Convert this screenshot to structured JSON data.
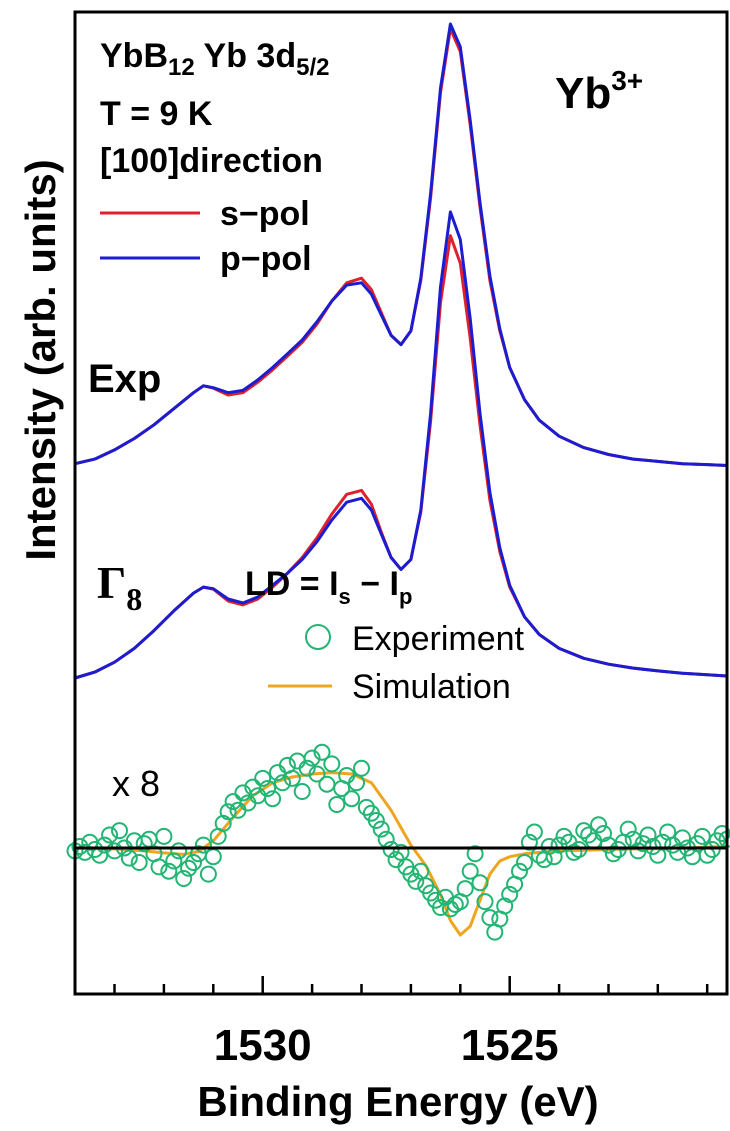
{
  "chart_data": {
    "type": "line",
    "xlabel": "Binding Energy (eV)",
    "ylabel": "Intensity (arb. units)",
    "x_reversed": true,
    "xlim": [
      1533.8,
      1520.6
    ],
    "xticks": [
      1530,
      1525
    ],
    "grid": false,
    "legend_position": "top-left",
    "colors": {
      "s_pol": "#e0202a",
      "p_pol": "#1c1cd0",
      "experiment": "#22b573",
      "simulation": "#f0a51e",
      "axis": "#000000"
    },
    "annotations": {
      "sample_line1_main": "YbB",
      "sample_line1_sub1": "12",
      "sample_line1_mid": " Yb 3d",
      "sample_line1_sub2": "5/2",
      "temperature": "T = 9 K",
      "direction": "[100]direction",
      "ion_base": "Yb",
      "ion_sup": "3+",
      "exp_label": "Exp",
      "calc_label_base": "Γ",
      "calc_label_sub": "8",
      "ld_prefix": "LD = I",
      "ld_sub_s": "s",
      "ld_mid": " − I",
      "ld_sub_p": "p",
      "scale_factor": "x 8"
    },
    "legend_top": [
      "s−pol",
      "p−pol"
    ],
    "legend_bottom": [
      "Experiment",
      "Simulation"
    ],
    "series": [
      {
        "name": "s−pol",
        "group": "Exp",
        "x": [
          1533.8,
          1533.4,
          1533.0,
          1532.6,
          1532.2,
          1531.8,
          1531.4,
          1531.2,
          1531.0,
          1530.7,
          1530.4,
          1530.1,
          1529.8,
          1529.5,
          1529.2,
          1528.9,
          1528.6,
          1528.3,
          1528.0,
          1527.8,
          1527.6,
          1527.4,
          1527.2,
          1527.0,
          1526.8,
          1526.6,
          1526.4,
          1526.2,
          1526.0,
          1525.8,
          1525.6,
          1525.4,
          1525.2,
          1525.0,
          1524.7,
          1524.4,
          1524.0,
          1523.5,
          1523.0,
          1522.5,
          1522.0,
          1521.5,
          1521.0,
          1520.6
        ],
        "values": [
          4.0,
          5.0,
          7.0,
          9.5,
          12.5,
          16.0,
          19.5,
          21.0,
          20.5,
          19.0,
          19.5,
          21.8,
          24.5,
          27.5,
          30.5,
          34.5,
          39.5,
          43.5,
          44.5,
          42.0,
          37.0,
          32.0,
          30.0,
          33.0,
          44.0,
          62.0,
          85.0,
          99.0,
          94.0,
          78.0,
          60.0,
          44.0,
          33.0,
          25.0,
          18.0,
          13.5,
          10.0,
          7.5,
          6.0,
          5.0,
          4.5,
          4.0,
          3.8,
          3.6
        ]
      },
      {
        "name": "p−pol",
        "group": "Exp",
        "x": [
          1533.8,
          1533.4,
          1533.0,
          1532.6,
          1532.2,
          1531.8,
          1531.4,
          1531.2,
          1531.0,
          1530.7,
          1530.4,
          1530.1,
          1529.8,
          1529.5,
          1529.2,
          1528.9,
          1528.6,
          1528.3,
          1528.0,
          1527.8,
          1527.6,
          1527.4,
          1527.2,
          1527.0,
          1526.8,
          1526.6,
          1526.4,
          1526.2,
          1526.0,
          1525.8,
          1525.6,
          1525.4,
          1525.2,
          1525.0,
          1524.7,
          1524.4,
          1524.0,
          1523.5,
          1523.0,
          1522.5,
          1522.0,
          1521.5,
          1521.0,
          1520.6
        ],
        "values": [
          4.0,
          5.0,
          7.0,
          9.5,
          12.5,
          16.0,
          19.5,
          21.0,
          20.6,
          19.5,
          20.0,
          22.3,
          25.0,
          28.0,
          31.0,
          35.0,
          39.5,
          43.0,
          43.5,
          41.0,
          36.5,
          32.0,
          30.0,
          33.0,
          44.5,
          63.0,
          86.0,
          100.0,
          95.0,
          79.0,
          61.0,
          45.0,
          33.5,
          25.0,
          18.0,
          13.5,
          10.0,
          7.5,
          6.0,
          5.0,
          4.5,
          4.0,
          3.8,
          3.6
        ]
      },
      {
        "name": "s−pol",
        "group": "Γ8",
        "x": [
          1533.8,
          1533.4,
          1533.0,
          1532.6,
          1532.2,
          1531.8,
          1531.4,
          1531.2,
          1531.0,
          1530.7,
          1530.4,
          1530.1,
          1529.8,
          1529.5,
          1529.2,
          1528.9,
          1528.6,
          1528.3,
          1528.0,
          1527.8,
          1527.6,
          1527.4,
          1527.2,
          1527.0,
          1526.8,
          1526.6,
          1526.4,
          1526.2,
          1526.0,
          1525.8,
          1525.6,
          1525.4,
          1525.2,
          1525.0,
          1524.7,
          1524.4,
          1524.0,
          1523.5,
          1523.0,
          1522.5,
          1522.0,
          1521.5,
          1521.0,
          1520.6
        ],
        "values": [
          0.0,
          1.5,
          4.0,
          7.5,
          12.0,
          17.0,
          21.5,
          23.0,
          22.5,
          19.5,
          18.5,
          20.0,
          23.0,
          26.5,
          30.5,
          35.5,
          41.5,
          46.5,
          47.5,
          44.0,
          37.0,
          30.5,
          27.5,
          30.0,
          42.0,
          65.0,
          95.0,
          112.0,
          105.0,
          86.0,
          64.0,
          45.0,
          32.0,
          23.0,
          15.5,
          11.0,
          7.5,
          5.0,
          3.5,
          2.5,
          1.8,
          1.2,
          0.8,
          0.5
        ]
      },
      {
        "name": "p−pol",
        "group": "Γ8",
        "x": [
          1533.8,
          1533.4,
          1533.0,
          1532.6,
          1532.2,
          1531.8,
          1531.4,
          1531.2,
          1531.0,
          1530.7,
          1530.4,
          1530.1,
          1529.8,
          1529.5,
          1529.2,
          1528.9,
          1528.6,
          1528.3,
          1528.0,
          1527.8,
          1527.6,
          1527.4,
          1527.2,
          1527.0,
          1526.8,
          1526.6,
          1526.4,
          1526.2,
          1526.0,
          1525.8,
          1525.6,
          1525.4,
          1525.2,
          1525.0,
          1524.7,
          1524.4,
          1524.0,
          1523.5,
          1523.0,
          1522.5,
          1522.0,
          1521.5,
          1521.0,
          1520.6
        ],
        "values": [
          0.0,
          1.5,
          4.0,
          7.5,
          12.0,
          17.0,
          21.5,
          23.0,
          22.6,
          20.0,
          19.0,
          20.5,
          23.5,
          26.5,
          30.0,
          34.5,
          40.0,
          44.5,
          45.5,
          42.5,
          36.5,
          30.5,
          27.5,
          30.0,
          42.5,
          67.0,
          99.0,
          118.0,
          111.0,
          91.0,
          67.0,
          47.0,
          33.0,
          23.5,
          15.5,
          11.0,
          7.5,
          5.0,
          3.5,
          2.5,
          1.8,
          1.2,
          0.8,
          0.5
        ]
      },
      {
        "name": "Simulation",
        "group": "LD",
        "x": [
          1533.8,
          1533.0,
          1532.4,
          1532.0,
          1531.6,
          1531.3,
          1531.0,
          1530.6,
          1530.2,
          1529.8,
          1529.4,
          1529.0,
          1528.6,
          1528.2,
          1527.8,
          1527.4,
          1527.0,
          1526.7,
          1526.4,
          1526.2,
          1526.0,
          1525.8,
          1525.6,
          1525.4,
          1525.2,
          1525.0,
          1524.7,
          1524.4,
          1524.0,
          1523.5,
          1523.0,
          1522.5,
          1522.0,
          1521.5,
          1521.0,
          1520.6
        ],
        "values": [
          0.0,
          -0.3,
          -1.0,
          -1.7,
          -2.2,
          -1.2,
          2.5,
          10.5,
          18.0,
          22.5,
          24.5,
          25.5,
          26.0,
          25.5,
          22.5,
          13.0,
          1.0,
          -6.0,
          -16.0,
          -25.0,
          -30.0,
          -27.0,
          -18.0,
          -9.0,
          -4.5,
          -3.0,
          -2.0,
          -1.5,
          -1.0,
          -0.8,
          -0.5,
          -0.3,
          -0.2,
          0.0,
          0.3,
          0.5
        ]
      },
      {
        "name": "Experiment",
        "group": "LD",
        "x": [
          1533.8,
          1533.7,
          1533.6,
          1533.5,
          1533.4,
          1533.3,
          1533.2,
          1533.1,
          1533.0,
          1532.9,
          1532.8,
          1532.7,
          1532.6,
          1532.5,
          1532.4,
          1532.3,
          1532.2,
          1532.1,
          1532.0,
          1531.9,
          1531.8,
          1531.7,
          1531.6,
          1531.5,
          1531.4,
          1531.3,
          1531.2,
          1531.1,
          1531.0,
          1530.9,
          1530.8,
          1530.7,
          1530.6,
          1530.5,
          1530.4,
          1530.3,
          1530.2,
          1530.1,
          1530.0,
          1529.9,
          1529.8,
          1529.7,
          1529.6,
          1529.5,
          1529.4,
          1529.3,
          1529.2,
          1529.1,
          1529.0,
          1528.9,
          1528.8,
          1528.7,
          1528.6,
          1528.5,
          1528.4,
          1528.3,
          1528.2,
          1528.1,
          1528.0,
          1527.9,
          1527.8,
          1527.7,
          1527.6,
          1527.5,
          1527.4,
          1527.3,
          1527.2,
          1527.1,
          1527.0,
          1526.9,
          1526.8,
          1526.7,
          1526.6,
          1526.5,
          1526.4,
          1526.3,
          1526.2,
          1526.1,
          1526.0,
          1525.9,
          1525.8,
          1525.7,
          1525.6,
          1525.5,
          1525.4,
          1525.3,
          1525.2,
          1525.1,
          1525.0,
          1524.9,
          1524.8,
          1524.7,
          1524.6,
          1524.5,
          1524.4,
          1524.3,
          1524.2,
          1524.1,
          1524.0,
          1523.9,
          1523.8,
          1523.7,
          1523.6,
          1523.5,
          1523.4,
          1523.3,
          1523.2,
          1523.1,
          1523.0,
          1522.9,
          1522.8,
          1522.7,
          1522.6,
          1522.5,
          1522.4,
          1522.3,
          1522.2,
          1522.1,
          1522.0,
          1521.9,
          1521.8,
          1521.7,
          1521.6,
          1521.5,
          1521.4,
          1521.3,
          1521.2,
          1521.1,
          1521.0,
          1520.9,
          1520.8,
          1520.7,
          1520.6
        ],
        "values": [
          -1.0,
          0.5,
          -1.5,
          2.0,
          -0.5,
          -2.5,
          1.0,
          4.5,
          -1.0,
          6.0,
          0.0,
          -3.5,
          2.5,
          -5.0,
          1.5,
          3.0,
          -2.0,
          -6.5,
          4.0,
          -8.0,
          -4.5,
          -1.0,
          -10.5,
          -7.0,
          -5.0,
          -2.0,
          1.0,
          -9.0,
          -3.0,
          4.0,
          8.5,
          12.5,
          16.0,
          13.0,
          19.0,
          15.5,
          21.0,
          18.0,
          24.0,
          20.5,
          17.0,
          26.0,
          22.5,
          28.5,
          24.0,
          30.0,
          19.5,
          27.5,
          31.0,
          25.5,
          33.0,
          22.0,
          29.0,
          15.0,
          20.5,
          25.0,
          17.0,
          22.5,
          27.5,
          14.0,
          12.0,
          9.5,
          6.5,
          3.0,
          -0.5,
          -4.0,
          -1.5,
          -6.5,
          -9.0,
          -11.5,
          -8.0,
          -13.0,
          -15.5,
          -18.0,
          -20.5,
          -17.0,
          -21.0,
          -19.5,
          -18.5,
          -14.0,
          -8.0,
          -2.0,
          -12.0,
          -18.5,
          -24.0,
          -29.0,
          -24.5,
          -20.0,
          -16.0,
          -12.5,
          -8.0,
          -5.0,
          2.0,
          5.5,
          -2.5,
          -4.0,
          0.5,
          -3.0,
          1.0,
          4.0,
          2.0,
          -1.5,
          -0.5,
          6.0,
          4.5,
          2.5,
          8.0,
          5.0,
          1.0,
          -2.0,
          -0.5,
          2.0,
          6.5,
          3.0,
          -1.0,
          1.5,
          4.5,
          0.5,
          -2.5,
          2.0,
          5.5,
          1.0,
          -1.5,
          3.5,
          0.0,
          -3.0,
          1.5,
          4.0,
          -2.5,
          -0.5,
          2.5,
          5.0,
          3.0
        ]
      }
    ]
  }
}
